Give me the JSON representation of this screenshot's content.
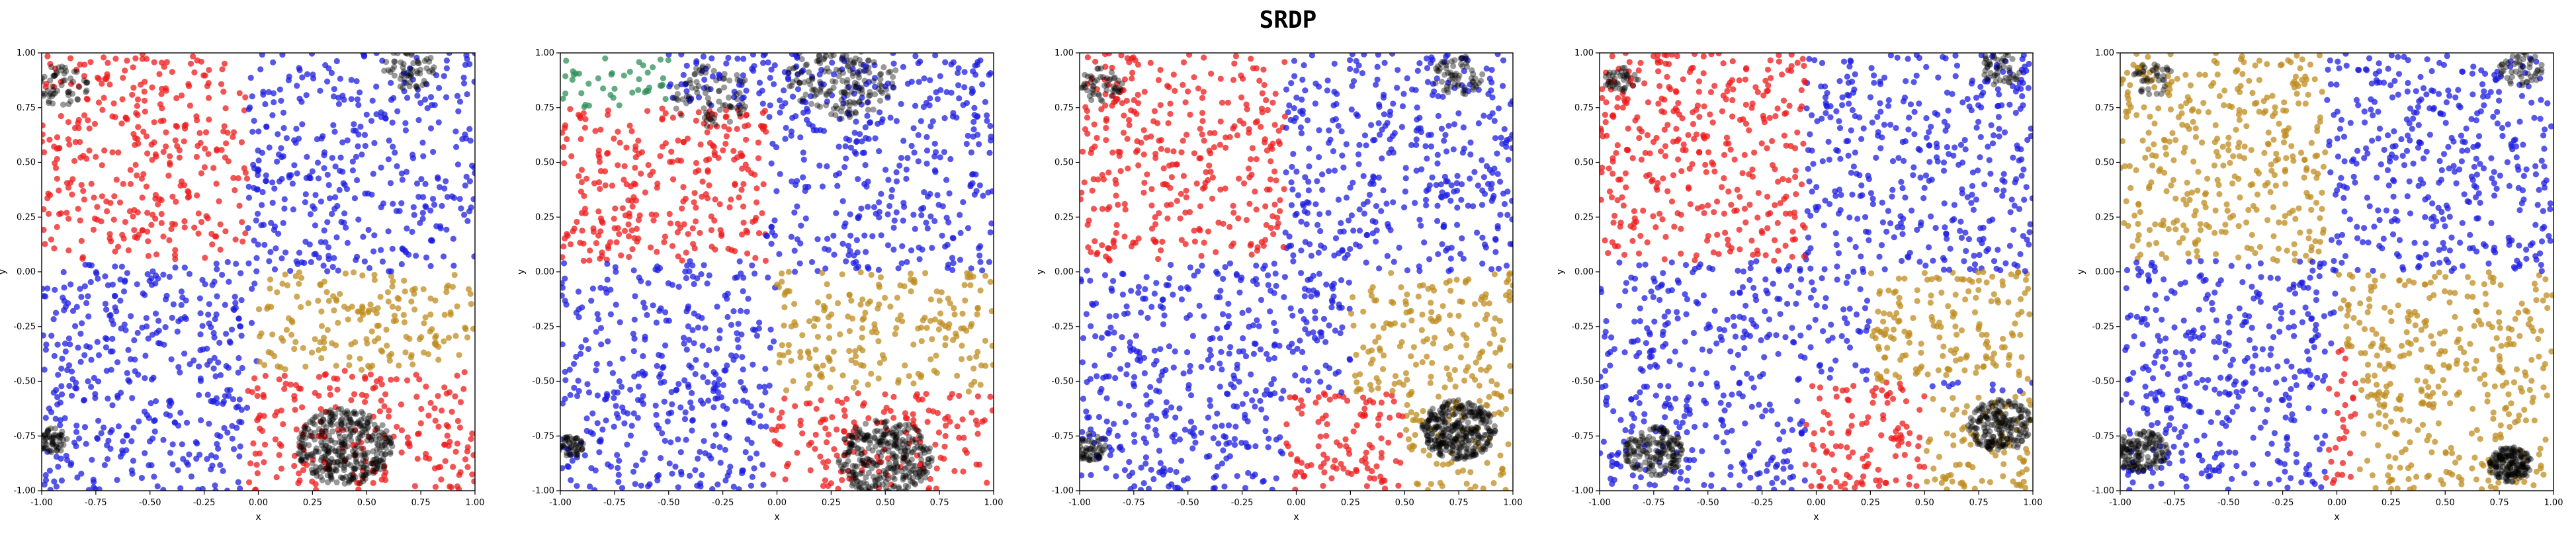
{
  "title": "SRDP",
  "colors": {
    "red": "#ee1b1b",
    "blue": "#1e1ee0",
    "gold": "#bf8c1f",
    "green": "#2f8f5a",
    "black": "#000000"
  },
  "chart_data": [
    {
      "type": "scatter",
      "xlabel": "x",
      "ylabel": "y",
      "xlim": [
        -1,
        1
      ],
      "ylim": [
        -1,
        1
      ],
      "xticks": [
        -1.0,
        -0.75,
        -0.5,
        -0.25,
        0.0,
        0.25,
        0.5,
        0.75,
        1.0
      ],
      "yticks": [
        -1.0,
        -0.75,
        -0.5,
        -0.25,
        0.0,
        0.25,
        0.5,
        0.75,
        1.0
      ],
      "regions": [
        {
          "name": "red",
          "x": [
            -1,
            -0.05
          ],
          "y": [
            0.05,
            1
          ]
        },
        {
          "name": "blue",
          "x": [
            -0.05,
            1
          ],
          "y": [
            0,
            1
          ]
        },
        {
          "name": "blue",
          "x": [
            -1,
            -0.05
          ],
          "y": [
            -1,
            0
          ]
        },
        {
          "name": "gold",
          "x": [
            0,
            1
          ],
          "y": [
            -0.45,
            0
          ]
        },
        {
          "name": "red",
          "x": [
            -0.05,
            1
          ],
          "y": [
            -1,
            -0.45
          ]
        }
      ],
      "clusters": [
        {
          "x": -0.9,
          "y": 0.85,
          "r": 0.12,
          "n": 60
        },
        {
          "x": 0.7,
          "y": 0.93,
          "r": 0.12,
          "n": 60
        },
        {
          "x": -0.95,
          "y": -0.77,
          "r": 0.07,
          "n": 60
        },
        {
          "x": 0.4,
          "y": -0.8,
          "r": 0.22,
          "n": 360
        }
      ]
    },
    {
      "type": "scatter",
      "xlabel": "x",
      "ylabel": "y",
      "xlim": [
        -1,
        1
      ],
      "ylim": [
        -1,
        1
      ],
      "xticks": [
        -1.0,
        -0.75,
        -0.5,
        -0.25,
        0.0,
        0.25,
        0.5,
        0.75,
        1.0
      ],
      "yticks": [
        -1.0,
        -0.75,
        -0.5,
        -0.25,
        0.0,
        0.25,
        0.5,
        0.75,
        1.0
      ],
      "regions": [
        {
          "name": "green",
          "x": [
            -1,
            -0.5
          ],
          "y": [
            0.75,
            1
          ]
        },
        {
          "name": "red",
          "x": [
            -1,
            -0.05
          ],
          "y": [
            0.05,
            0.75
          ]
        },
        {
          "name": "blue",
          "x": [
            -0.05,
            1
          ],
          "y": [
            0,
            1
          ]
        },
        {
          "name": "blue",
          "x": [
            -1,
            -0.05
          ],
          "y": [
            -1,
            0
          ]
        },
        {
          "name": "gold",
          "x": [
            0,
            1
          ],
          "y": [
            -0.55,
            0
          ]
        },
        {
          "name": "red",
          "x": [
            -0.05,
            1
          ],
          "y": [
            -1,
            -0.55
          ]
        }
      ],
      "clusters": [
        {
          "x": -0.3,
          "y": 0.8,
          "r": 0.18,
          "n": 80
        },
        {
          "x": 0.3,
          "y": 0.9,
          "r": 0.25,
          "n": 200
        },
        {
          "x": -0.95,
          "y": -0.8,
          "r": 0.06,
          "n": 50
        },
        {
          "x": 0.5,
          "y": -0.85,
          "r": 0.22,
          "n": 320
        }
      ]
    },
    {
      "type": "scatter",
      "xlabel": "x",
      "ylabel": "y",
      "xlim": [
        -1,
        1
      ],
      "ylim": [
        -1,
        1
      ],
      "xticks": [
        -1.0,
        -0.75,
        -0.5,
        -0.25,
        0.0,
        0.25,
        0.5,
        0.75,
        1.0
      ],
      "yticks": [
        -1.0,
        -0.75,
        -0.5,
        -0.25,
        0.0,
        0.25,
        0.5,
        0.75,
        1.0
      ],
      "regions": [
        {
          "name": "red",
          "x": [
            -1,
            -0.05
          ],
          "y": [
            0.05,
            1
          ]
        },
        {
          "name": "blue",
          "x": [
            -0.05,
            1
          ],
          "y": [
            0,
            1
          ]
        },
        {
          "name": "blue",
          "x": [
            -1,
            -0.05
          ],
          "y": [
            -1,
            0
          ]
        },
        {
          "name": "gold",
          "x": [
            0.25,
            1
          ],
          "y": [
            -0.55,
            0
          ]
        },
        {
          "name": "red",
          "x": [
            -0.05,
            0.5
          ],
          "y": [
            -1,
            -0.55
          ]
        },
        {
          "name": "gold",
          "x": [
            0.5,
            1
          ],
          "y": [
            -1,
            -0.55
          ]
        }
      ],
      "clusters": [
        {
          "x": -0.9,
          "y": 0.85,
          "r": 0.1,
          "n": 50
        },
        {
          "x": 0.75,
          "y": 0.9,
          "r": 0.12,
          "n": 60
        },
        {
          "x": -0.95,
          "y": -0.8,
          "r": 0.08,
          "n": 60
        },
        {
          "x": 0.75,
          "y": -0.72,
          "r": 0.17,
          "n": 320
        }
      ]
    },
    {
      "type": "scatter",
      "xlabel": "x",
      "ylabel": "y",
      "xlim": [
        -1,
        1
      ],
      "ylim": [
        -1,
        1
      ],
      "xticks": [
        -1.0,
        -0.75,
        -0.5,
        -0.25,
        0.0,
        0.25,
        0.5,
        0.75,
        1.0
      ],
      "yticks": [
        -1.0,
        -0.75,
        -0.5,
        -0.25,
        0.0,
        0.25,
        0.5,
        0.75,
        1.0
      ],
      "regions": [
        {
          "name": "red",
          "x": [
            -1,
            -0.05
          ],
          "y": [
            0.05,
            1
          ]
        },
        {
          "name": "blue",
          "x": [
            -0.05,
            1
          ],
          "y": [
            0,
            1
          ]
        },
        {
          "name": "blue",
          "x": [
            -1,
            -0.05
          ],
          "y": [
            -1,
            0
          ]
        },
        {
          "name": "gold",
          "x": [
            0.25,
            1
          ],
          "y": [
            -0.5,
            0
          ]
        },
        {
          "name": "red",
          "x": [
            -0.05,
            0.5
          ],
          "y": [
            -1,
            -0.5
          ]
        },
        {
          "name": "gold",
          "x": [
            0.5,
            1
          ],
          "y": [
            -1,
            -0.55
          ]
        }
      ],
      "clusters": [
        {
          "x": -0.9,
          "y": 0.88,
          "r": 0.08,
          "n": 40
        },
        {
          "x": 0.85,
          "y": 0.93,
          "r": 0.1,
          "n": 50
        },
        {
          "x": -0.75,
          "y": -0.82,
          "r": 0.14,
          "n": 160
        },
        {
          "x": 0.85,
          "y": -0.7,
          "r": 0.15,
          "n": 200
        }
      ]
    },
    {
      "type": "scatter",
      "xlabel": "x",
      "ylabel": "y",
      "xlim": [
        -1,
        1
      ],
      "ylim": [
        -1,
        1
      ],
      "xticks": [
        -1.0,
        -0.75,
        -0.5,
        -0.25,
        0.0,
        0.25,
        0.5,
        0.75,
        1.0
      ],
      "yticks": [
        -1.0,
        -0.75,
        -0.5,
        -0.25,
        0.0,
        0.25,
        0.5,
        0.75,
        1.0
      ],
      "regions": [
        {
          "name": "gold",
          "x": [
            -1,
            -0.05
          ],
          "y": [
            0.05,
            1
          ]
        },
        {
          "name": "blue",
          "x": [
            -0.05,
            1
          ],
          "y": [
            0,
            1
          ]
        },
        {
          "name": "blue",
          "x": [
            -1,
            -0.05
          ],
          "y": [
            -1,
            0
          ]
        },
        {
          "name": "gold",
          "x": [
            0,
            1
          ],
          "y": [
            -1,
            0
          ]
        },
        {
          "name": "red",
          "x": [
            -0.05,
            0.1
          ],
          "y": [
            -1,
            -0.35
          ]
        }
      ],
      "clusters": [
        {
          "x": -0.85,
          "y": 0.88,
          "r": 0.1,
          "n": 40
        },
        {
          "x": 0.85,
          "y": 0.93,
          "r": 0.1,
          "n": 50
        },
        {
          "x": -0.9,
          "y": -0.82,
          "r": 0.12,
          "n": 140
        },
        {
          "x": 0.8,
          "y": -0.88,
          "r": 0.1,
          "n": 170
        }
      ]
    }
  ]
}
